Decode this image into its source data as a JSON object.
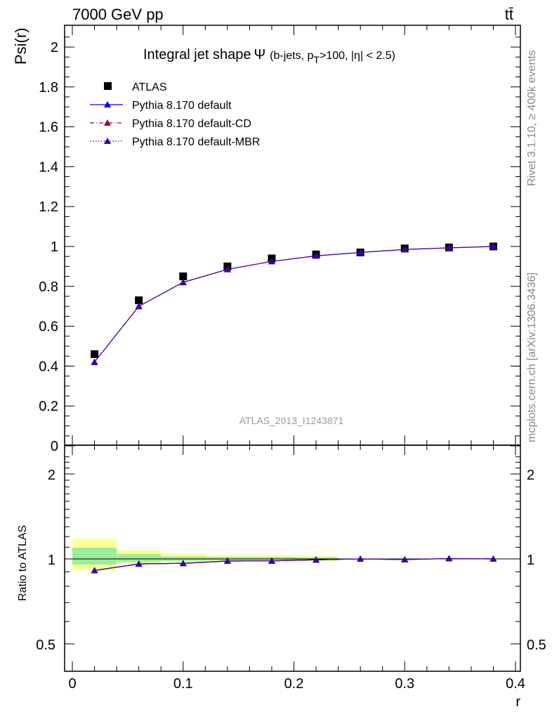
{
  "header": {
    "energy_label": "7000 GeV pp",
    "process_label": "tt̄"
  },
  "side": {
    "rivet_label": "Rivet 3.1.10, ≥ 400k events",
    "mcplots_label": "mcplots.cern.ch [arXiv:1306.3436]"
  },
  "chart_data": [
    {
      "type": "line",
      "title": "Integral jet shape Ψ (b-jets, p_T>100, |η| < 2.5)",
      "title_parts": {
        "main": "Integral jet shape",
        "psi": "Ψ",
        "open": "(b-jets, p",
        "sub": "T",
        "rest": ">100, |η| < 2.5)"
      },
      "ylabel": "Psi(r)",
      "xlabel": "",
      "watermark": "ATLAS_2013_I1243871",
      "xlim": [
        -0.01,
        0.4
      ],
      "ylim": [
        0,
        2.1
      ],
      "yticks": [
        0,
        0.2,
        0.4,
        0.6,
        0.8,
        1,
        1.2,
        1.4,
        1.6,
        1.8,
        2
      ],
      "ytick_labels": [
        "0",
        "0.2",
        "0.4",
        "0.6",
        "0.8",
        "1",
        "1.2",
        "1.4",
        "1.6",
        "1.8",
        "2"
      ],
      "legend_position": "top-left",
      "x": [
        0.02,
        0.06,
        0.1,
        0.14,
        0.18,
        0.22,
        0.26,
        0.3,
        0.34,
        0.38
      ],
      "series": [
        {
          "name": "ATLAS",
          "marker": "square",
          "color": "#000000",
          "values": [
            0.46,
            0.73,
            0.85,
            0.9,
            0.94,
            0.96,
            0.97,
            0.99,
            0.995,
            1.0
          ]
        },
        {
          "name": "Pythia 8.170 default",
          "marker": "triangle",
          "color": "#0000ff",
          "dash": "solid",
          "values": [
            0.42,
            0.7,
            0.82,
            0.885,
            0.925,
            0.953,
            0.97,
            0.985,
            0.993,
            1.0
          ]
        },
        {
          "name": "Pythia 8.170 default-CD",
          "marker": "triangle",
          "color": "#a0003c",
          "dash": "dashdot",
          "values": [
            0.42,
            0.7,
            0.82,
            0.885,
            0.925,
            0.953,
            0.97,
            0.985,
            0.993,
            1.0
          ]
        },
        {
          "name": "Pythia 8.170 default-MBR",
          "marker": "triangle",
          "color": "#3c00a0",
          "dash": "dotted",
          "values": [
            0.42,
            0.7,
            0.82,
            0.885,
            0.925,
            0.953,
            0.97,
            0.985,
            0.993,
            1.0
          ]
        }
      ]
    },
    {
      "type": "line",
      "title": "",
      "ylabel": "Ratio to ATLAS",
      "xlabel": "r",
      "log_y": true,
      "xlim": [
        -0.01,
        0.4
      ],
      "ylim": [
        0.4,
        2.4
      ],
      "xticks": [
        0,
        0.1,
        0.2,
        0.3,
        0.4
      ],
      "xtick_labels": [
        "0",
        "0.1",
        "0.2",
        "0.3",
        "0.4"
      ],
      "yticks": [
        0.5,
        1,
        2
      ],
      "ytick_labels": [
        "0.5",
        "1",
        "2"
      ],
      "bands": {
        "x_edges": [
          0.0,
          0.04,
          0.08,
          0.12,
          0.16,
          0.2,
          0.24
        ],
        "yellow": [
          [
            0.91,
            1.18
          ],
          [
            0.96,
            1.075
          ],
          [
            0.975,
            1.04
          ],
          [
            0.98,
            1.03
          ],
          [
            0.98,
            1.03
          ],
          [
            0.98,
            1.025
          ]
        ],
        "green": [
          [
            0.955,
            1.095
          ],
          [
            0.975,
            1.04
          ],
          [
            0.985,
            1.02
          ],
          [
            0.99,
            1.015
          ],
          [
            0.99,
            1.015
          ],
          [
            0.99,
            1.012
          ]
        ],
        "yellow_color": "#ffff99",
        "green_color": "#99ee99"
      },
      "x": [
        0.02,
        0.06,
        0.1,
        0.14,
        0.18,
        0.22,
        0.26,
        0.3,
        0.34,
        0.38
      ],
      "series": [
        {
          "name": "Pythia 8.170 default",
          "color": "#0000ff",
          "values": [
            0.91,
            0.96,
            0.965,
            0.983,
            0.984,
            0.993,
            1.0,
            0.995,
            1.003,
            1.0
          ]
        },
        {
          "name": "Pythia 8.170 default-CD",
          "color": "#a0003c",
          "values": [
            0.91,
            0.96,
            0.965,
            0.983,
            0.984,
            0.993,
            1.0,
            0.995,
            1.003,
            1.0
          ]
        },
        {
          "name": "Pythia 8.170 default-MBR",
          "color": "#3c00a0",
          "values": [
            0.91,
            0.96,
            0.965,
            0.983,
            0.984,
            0.993,
            1.0,
            0.995,
            1.003,
            1.0
          ]
        }
      ]
    }
  ]
}
